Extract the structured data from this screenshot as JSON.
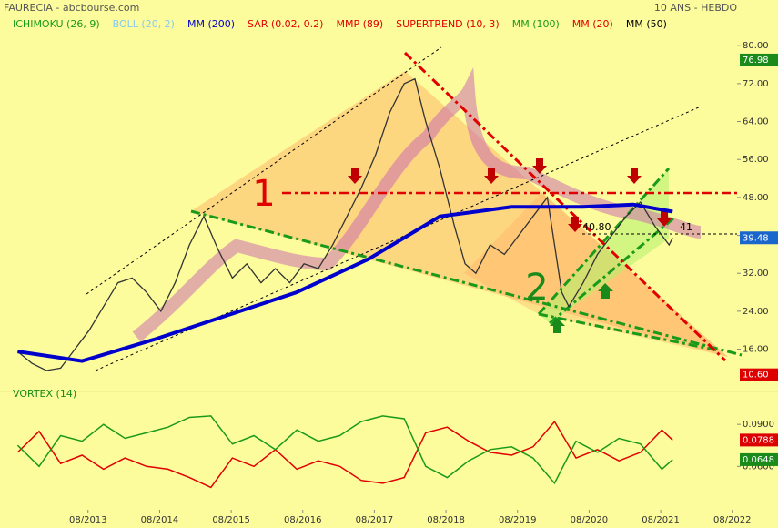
{
  "chart_data": [
    {
      "type": "line",
      "title": "FAURECIA - abcbourse.com",
      "subtitle": "10 ANS - HEBDO",
      "indicators": [
        {
          "label": "ICHIMOKU (26, 9)",
          "color": "#1a9a1a"
        },
        {
          "label": "BOLL (20, 2)",
          "color": "#88c8f0"
        },
        {
          "label": "SAR (0.02, 0.2)",
          "color": "#e00000"
        },
        {
          "label": "MMP (89)",
          "color": "#e00000"
        },
        {
          "label": "SUPERTREND (10, 3)",
          "color": "#e00000"
        },
        {
          "label": "MM (100)",
          "color": "#1a9a1a"
        },
        {
          "label": "MM (20)",
          "color": "#e00000"
        },
        {
          "label": "MM (50)",
          "color": "#000000"
        }
      ],
      "xlim": [
        2012.48,
        2022.65
      ],
      "xticks": [
        {
          "value": 2013.583,
          "label": "08/2013"
        },
        {
          "value": 2014.583,
          "label": "08/2014"
        },
        {
          "value": 2015.583,
          "label": "08/2015"
        },
        {
          "value": 2016.583,
          "label": "08/2016"
        },
        {
          "value": 2017.583,
          "label": "08/2017"
        },
        {
          "value": 2018.583,
          "label": "08/2018"
        },
        {
          "value": 2019.583,
          "label": "08/2019"
        },
        {
          "value": 2020.583,
          "label": "08/2020"
        },
        {
          "value": 2021.583,
          "label": "08/2021"
        },
        {
          "value": 2022.583,
          "label": "08/2022"
        }
      ],
      "ylim": [
        9,
        85.8
      ],
      "yticks": [
        {
          "value": 16,
          "label": "16.00"
        },
        {
          "value": 24,
          "label": "24.00"
        },
        {
          "value": 32,
          "label": "32.00"
        },
        {
          "value": 40,
          "label": "40.00"
        },
        {
          "value": 48,
          "label": "48.00"
        },
        {
          "value": 56,
          "label": "56.00"
        },
        {
          "value": 64,
          "label": "64.00"
        },
        {
          "value": 72,
          "label": "72.00"
        },
        {
          "value": 80,
          "label": "80.00"
        }
      ],
      "series": [
        {
          "color": "#333333",
          "x": [
            2012.6,
            2012.8,
            2013.0,
            2013.2,
            2013.4,
            2013.6,
            2013.8,
            2014.0,
            2014.2,
            2014.4,
            2014.6,
            2014.8,
            2015.0,
            2015.2,
            2015.4,
            2015.6,
            2015.8,
            2016.0,
            2016.2,
            2016.4,
            2016.6,
            2016.8,
            2017.0,
            2017.2,
            2017.4,
            2017.6,
            2017.8,
            2018.0,
            2018.15,
            2018.3,
            2018.5,
            2018.7,
            2018.85,
            2019.0,
            2019.2,
            2019.4,
            2019.6,
            2019.8,
            2020.0,
            2020.2,
            2020.3,
            2020.5,
            2020.7,
            2020.9,
            2021.1,
            2021.3,
            2021.5,
            2021.7,
            2021.75
          ],
          "values": [
            15.5,
            13,
            11.5,
            12,
            16,
            20,
            25,
            30,
            31,
            28,
            24,
            30,
            38,
            44,
            37,
            31,
            34,
            30,
            33,
            30,
            34,
            33,
            38,
            44,
            50,
            57,
            66,
            72,
            73,
            64,
            54,
            42,
            34,
            32,
            38,
            36,
            40,
            44,
            48,
            28,
            25,
            30,
            36,
            40,
            44,
            47,
            42,
            38,
            39.48
          ]
        },
        {
          "name": "MM (200)",
          "color": "#0000cc",
          "x": [
            2012.6,
            2013.5,
            2014.5,
            2015.5,
            2016.5,
            2017.5,
            2018.5,
            2019.5,
            2020.5,
            2021.2,
            2021.75
          ],
          "values": [
            15.5,
            13.5,
            18,
            23,
            28,
            35,
            44,
            46,
            46,
            46.5,
            45
          ]
        }
      ],
      "last_values": [
        {
          "value": 76.98,
          "label": "76.98",
          "color": "#1a8a1a"
        },
        {
          "value": 39.48,
          "label": "39.48",
          "color": "#1a66cc"
        },
        {
          "value": 10.6,
          "label": "10.60",
          "color": "#dd0000"
        }
      ],
      "annotations": [
        "1",
        "2",
        "40.80",
        "41"
      ]
    },
    {
      "type": "line",
      "title": "VORTEX (14)",
      "xlim": [
        2012.48,
        2022.65
      ],
      "ylim": [
        0.029,
        0.107
      ],
      "yticks": [
        {
          "value": 0.09,
          "label": "0.0900"
        },
        {
          "value": 0.06,
          "label": "0.0600"
        }
      ],
      "x": [
        2012.6,
        2012.9,
        2013.2,
        2013.5,
        2013.8,
        2014.1,
        2014.4,
        2014.7,
        2015.0,
        2015.3,
        2015.6,
        2015.9,
        2016.2,
        2016.5,
        2016.8,
        2017.1,
        2017.4,
        2017.7,
        2018.0,
        2018.3,
        2018.6,
        2018.9,
        2019.2,
        2019.5,
        2019.8,
        2020.1,
        2020.4,
        2020.7,
        2021.0,
        2021.3,
        2021.6,
        2021.75
      ],
      "series": [
        {
          "color": "#e00000",
          "values": [
            0.07,
            0.085,
            0.062,
            0.068,
            0.058,
            0.066,
            0.06,
            0.058,
            0.052,
            0.045,
            0.066,
            0.06,
            0.072,
            0.058,
            0.064,
            0.06,
            0.05,
            0.048,
            0.052,
            0.084,
            0.088,
            0.078,
            0.07,
            0.068,
            0.074,
            0.092,
            0.066,
            0.072,
            0.064,
            0.07,
            0.086,
            0.0788
          ]
        },
        {
          "color": "#1a9a1a",
          "values": [
            0.075,
            0.06,
            0.082,
            0.078,
            0.09,
            0.08,
            0.084,
            0.088,
            0.095,
            0.096,
            0.076,
            0.082,
            0.072,
            0.086,
            0.078,
            0.082,
            0.092,
            0.096,
            0.094,
            0.06,
            0.052,
            0.064,
            0.072,
            0.074,
            0.066,
            0.048,
            0.078,
            0.07,
            0.08,
            0.076,
            0.058,
            0.0648
          ]
        }
      ],
      "last_values": [
        {
          "value": 0.0788,
          "label": "0.0788",
          "color": "#dd0000"
        },
        {
          "value": 0.0648,
          "label": "0.0648",
          "color": "#1a8a1a"
        }
      ]
    }
  ]
}
